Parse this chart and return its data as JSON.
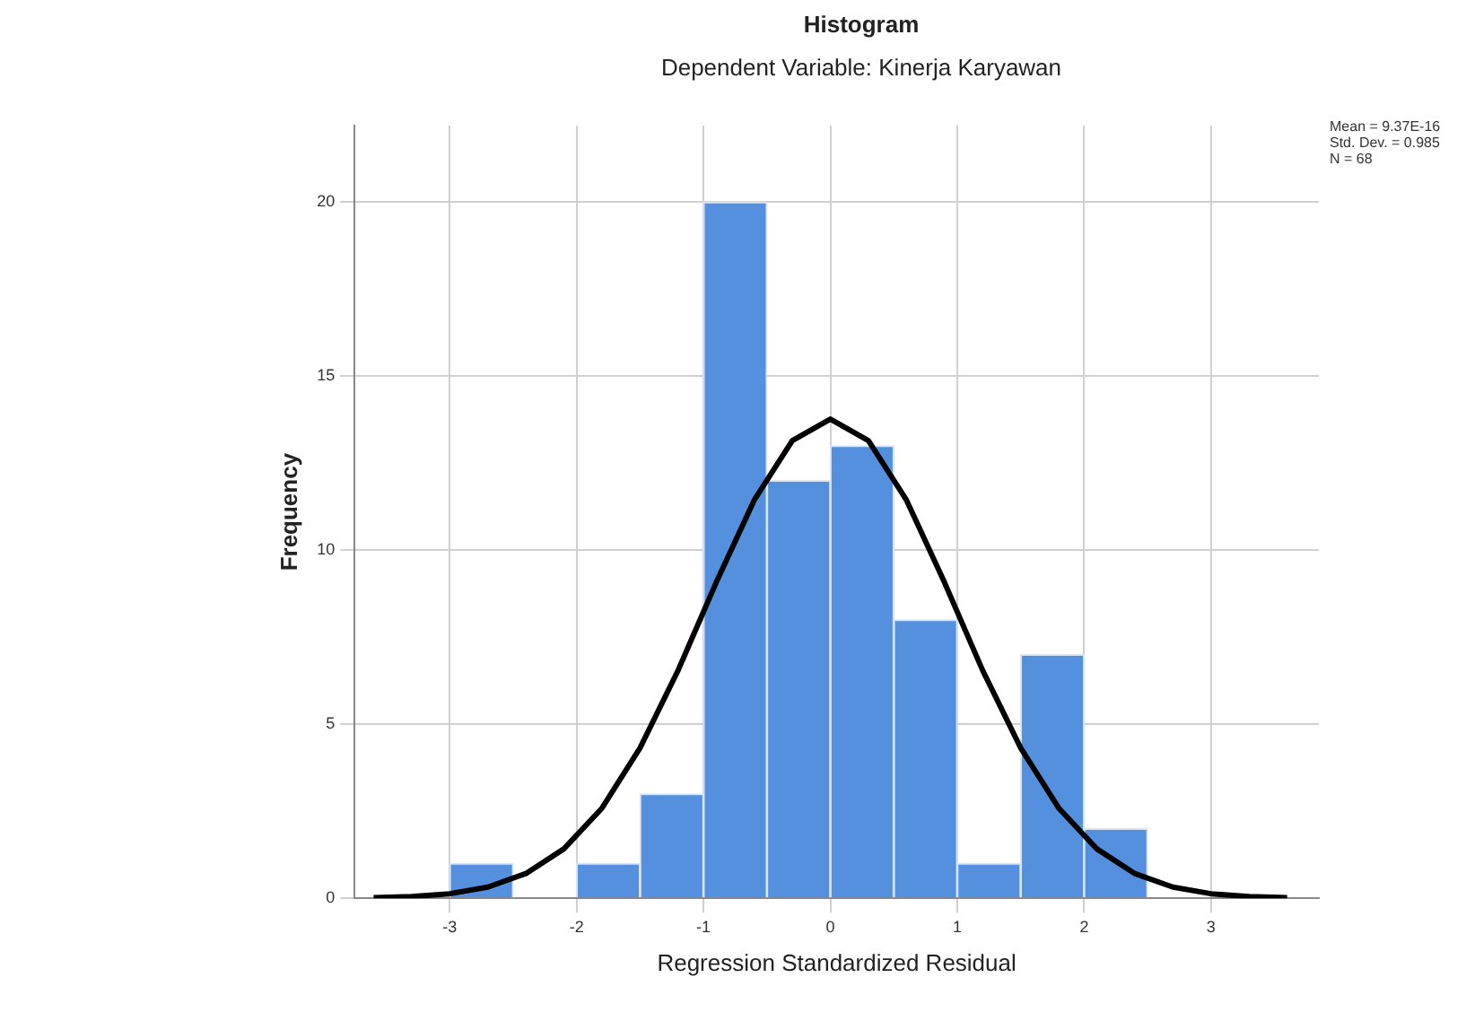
{
  "chart_data": {
    "type": "histogram",
    "title": "Histogram",
    "subtitle": "Dependent Variable: Kinerja Karyawan",
    "xlabel": "Regression Standardized Residual",
    "ylabel": "Frequency",
    "bins": [
      -3,
      -2.5,
      -2,
      -1.5,
      -1,
      -0.5,
      0,
      0.5,
      1,
      1.5,
      2,
      2.5
    ],
    "values": [
      1,
      0,
      1,
      3,
      20,
      12,
      13,
      8,
      1,
      7,
      2
    ],
    "color": "#5590de",
    "series": [
      {
        "type": "line",
        "color": "#000000",
        "x": [
          -3.6,
          -3.3,
          -3,
          -2.7,
          -2.4,
          -2.1,
          -1.8,
          -1.5,
          -1.2,
          -0.9,
          -0.6,
          -0.3,
          0,
          0.3,
          0.6,
          0.9,
          1.2,
          1.5,
          1.8,
          2.1,
          2.4,
          2.7,
          3,
          3.3,
          3.6
        ],
        "values": [
          0.02,
          0.05,
          0.13,
          0.32,
          0.71,
          1.42,
          2.59,
          4.32,
          6.55,
          9.07,
          11.44,
          13.15,
          13.77,
          13.15,
          11.44,
          9.07,
          6.55,
          4.32,
          2.59,
          1.42,
          0.71,
          0.32,
          0.13,
          0.05,
          0.02
        ]
      }
    ],
    "xlim": [
      -3.75,
      3.85
    ],
    "xticks": [
      -3,
      -2,
      -1,
      0,
      1,
      2,
      3
    ],
    "ylim": [
      0,
      22.2
    ],
    "yticks": [
      0,
      5,
      10,
      15,
      20
    ],
    "grid": true,
    "legend": false,
    "marker": "none",
    "line_style": "solid",
    "annotations": [
      "Mean = 9.37E-16",
      "Std. Dev. = 0.985",
      "N = 68"
    ]
  }
}
